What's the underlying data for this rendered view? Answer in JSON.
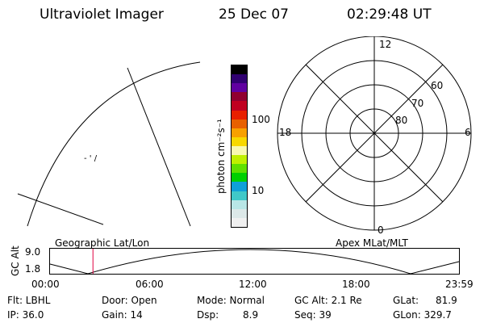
{
  "header": {
    "instrument": "Ultraviolet Imager",
    "date": "25 Dec 07",
    "time": "02:29:48 UT"
  },
  "colorbar": {
    "unit_label": "photon cm⁻²s⁻¹",
    "tick_100": "100",
    "tick_10": "10",
    "colors": [
      "#f0f0f0",
      "#dce8e8",
      "#b8e6e6",
      "#40c8c8",
      "#10a0d8",
      "#00d000",
      "#60e000",
      "#c0f000",
      "#f8f8b0",
      "#f8d800",
      "#f8a000",
      "#e86000",
      "#e82000",
      "#c00020",
      "#900030",
      "#6000a0",
      "#300070",
      "#000000"
    ]
  },
  "left_map": {
    "label": "Geographic Lat/Lon",
    "marker_text": "- ' /"
  },
  "polar_plot": {
    "label": "Apex MLat/MLT",
    "mlt_top": "12",
    "mlt_left": "18",
    "mlt_right": "6",
    "mlt_bottom": "0",
    "lat_60": "60",
    "lat_70": "70",
    "lat_80": "80"
  },
  "timeline": {
    "axis_label": "GC Alt",
    "y_max": "9.0",
    "y_min": "1.8",
    "ticks": [
      "00:00",
      "06:00",
      "12:00",
      "18:00",
      "23:59"
    ],
    "current_time_fraction": 0.105
  },
  "info": {
    "flt": "Flt: LBHL",
    "ip": "IP: 36.0",
    "door": "Door: Open",
    "gain": "Gain: 14",
    "mode": "Mode: Normal",
    "dsp": "Dsp:",
    "dsp_value": "8.9",
    "gc_alt": "GC Alt: 2.1 Re",
    "seq": "Seq: 39",
    "glat": "GLat:",
    "glat_value": "81.9",
    "glon": "GLon: 329.7"
  }
}
